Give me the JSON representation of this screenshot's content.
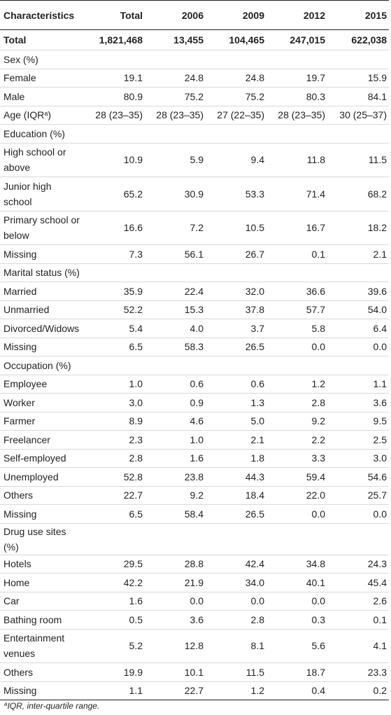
{
  "header": {
    "columns": [
      "Characteristics",
      "Total",
      "2006",
      "2009",
      "2012",
      "2015"
    ]
  },
  "rows": [
    {
      "label": "Total",
      "values": [
        "1,821,468",
        "13,455",
        "104,465",
        "247,015",
        "622,038"
      ]
    },
    {
      "label": "Sex (%)",
      "values": [
        "",
        "",
        "",
        "",
        ""
      ]
    },
    {
      "label": "Female",
      "values": [
        "19.1",
        "24.8",
        "24.8",
        "19.7",
        "15.9"
      ]
    },
    {
      "label": "Male",
      "values": [
        "80.9",
        "75.2",
        "75.2",
        "80.3",
        "84.1"
      ]
    },
    {
      "label": "Age (IQR",
      "label_sup": "a",
      "label_after": ")",
      "values": [
        "28 (23–35)",
        "28 (23–35)",
        "27 (22–35)",
        "28 (23–35)",
        "30 (25–37)"
      ]
    },
    {
      "label": "Education (%)",
      "values": [
        "",
        "",
        "",
        "",
        ""
      ]
    },
    {
      "label": "High school or above",
      "values": [
        "10.9",
        "5.9",
        "9.4",
        "11.8",
        "11.5"
      ]
    },
    {
      "label": "Junior high school",
      "values": [
        "65.2",
        "30.9",
        "53.3",
        "71.4",
        "68.2"
      ]
    },
    {
      "label": "Primary school or below",
      "values": [
        "16.6",
        "7.2",
        "10.5",
        "16.7",
        "18.2"
      ]
    },
    {
      "label": "Missing",
      "values": [
        "7.3",
        "56.1",
        "26.7",
        "0.1",
        "2.1"
      ]
    },
    {
      "label": "Marital status (%)",
      "values": [
        "",
        "",
        "",
        "",
        ""
      ]
    },
    {
      "label": "Married",
      "values": [
        "35.9",
        "22.4",
        "32.0",
        "36.6",
        "39.6"
      ]
    },
    {
      "label": "Unmarried",
      "values": [
        "52.2",
        "15.3",
        "37.8",
        "57.7",
        "54.0"
      ]
    },
    {
      "label": "Divorced/Widows",
      "values": [
        "5.4",
        "4.0",
        "3.7",
        "5.8",
        "6.4"
      ]
    },
    {
      "label": "Missing",
      "values": [
        "6.5",
        "58.3",
        "26.5",
        "0.0",
        "0.0"
      ]
    },
    {
      "label": "Occupation (%)",
      "values": [
        "",
        "",
        "",
        "",
        ""
      ]
    },
    {
      "label": "Employee",
      "values": [
        "1.0",
        "0.6",
        "0.6",
        "1.2",
        "1.1"
      ]
    },
    {
      "label": "Worker",
      "values": [
        "3.0",
        "0.9",
        "1.3",
        "2.8",
        "3.6"
      ]
    },
    {
      "label": "Farmer",
      "values": [
        "8.9",
        "4.6",
        "5.0",
        "9.2",
        "9.5"
      ]
    },
    {
      "label": "Freelancer",
      "values": [
        "2.3",
        "1.0",
        "2.1",
        "2.2",
        "2.5"
      ]
    },
    {
      "label": "Self-employed",
      "values": [
        "2.8",
        "1.6",
        "1.8",
        "3.3",
        "3.0"
      ]
    },
    {
      "label": "Unemployed",
      "values": [
        "52.8",
        "23.8",
        "44.3",
        "59.4",
        "54.6"
      ]
    },
    {
      "label": "Others",
      "values": [
        "22.7",
        "9.2",
        "18.4",
        "22.0",
        "25.7"
      ]
    },
    {
      "label": "Missing",
      "values": [
        "6.5",
        "58.4",
        "26.5",
        "0.0",
        "0.0"
      ]
    },
    {
      "label": "Drug use sites (%)",
      "values": [
        "",
        "",
        "",
        "",
        ""
      ]
    },
    {
      "label": "Hotels",
      "values": [
        "29.5",
        "28.8",
        "42.4",
        "34.8",
        "24.3"
      ]
    },
    {
      "label": "Home",
      "values": [
        "42.2",
        "21.9",
        "34.0",
        "40.1",
        "45.4"
      ]
    },
    {
      "label": "Car",
      "values": [
        "1.6",
        "0.0",
        "0.0",
        "0.0",
        "2.6"
      ]
    },
    {
      "label": "Bathing room",
      "values": [
        "0.5",
        "3.6",
        "2.8",
        "0.3",
        "0.1"
      ]
    },
    {
      "label": "Entertainment venues",
      "values": [
        "5.2",
        "12.8",
        "8.1",
        "5.6",
        "4.1"
      ]
    },
    {
      "label": "Others",
      "values": [
        "19.9",
        "10.1",
        "11.5",
        "18.7",
        "23.3"
      ]
    },
    {
      "label": "Missing",
      "values": [
        "1.1",
        "22.7",
        "1.2",
        "0.4",
        "0.2"
      ]
    }
  ],
  "footnote": {
    "marker": "a",
    "text": "IQR, inter-quartile range."
  }
}
